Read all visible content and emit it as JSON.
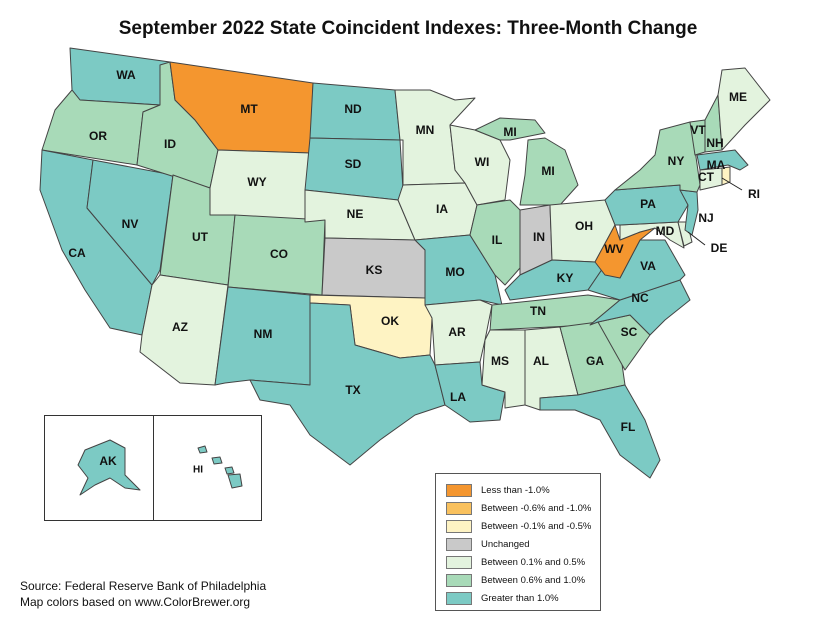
{
  "title": "September 2022 State Coincident Indexes: Three-Month Change",
  "colors": {
    "less_than_neg1": "#f4962f",
    "neg06_to_neg10": "#f9c15e",
    "neg01_to_neg05": "#fef3c3",
    "unchanged": "#c9c9c9",
    "pos01_to_05": "#e3f3de",
    "pos06_to_10": "#a8dab8",
    "greater_than_1": "#7ccac4"
  },
  "legend": [
    {
      "label": "Less than -1.0%",
      "color": "#f4962f"
    },
    {
      "label": "Between -0.6% and -1.0%",
      "color": "#f9c15e"
    },
    {
      "label": "Between -0.1% and -0.5%",
      "color": "#fef3c3"
    },
    {
      "label": "Unchanged",
      "color": "#c9c9c9"
    },
    {
      "label": "Between 0.1% and 0.5%",
      "color": "#e3f3de"
    },
    {
      "label": "Between 0.6% and 1.0%",
      "color": "#a8dab8"
    },
    {
      "label": "Greater than 1.0%",
      "color": "#7ccac4"
    }
  ],
  "states": {
    "WA": "greater_than_1",
    "OR": "pos06_to_10",
    "CA": "greater_than_1",
    "NV": "greater_than_1",
    "ID": "pos06_to_10",
    "MT": "less_than_neg1",
    "WY": "pos01_to_05",
    "UT": "pos06_to_10",
    "AZ": "pos01_to_05",
    "CO": "pos06_to_10",
    "NM": "greater_than_1",
    "ND": "greater_than_1",
    "SD": "greater_than_1",
    "NE": "pos01_to_05",
    "KS": "unchanged",
    "OK": "neg01_to_neg05",
    "TX": "greater_than_1",
    "MN": "pos01_to_05",
    "IA": "pos01_to_05",
    "MO": "greater_than_1",
    "AR": "pos01_to_05",
    "LA": "greater_than_1",
    "WI": "pos01_to_05",
    "IL": "pos06_to_10",
    "MI": "pos06_to_10",
    "IN": "unchanged",
    "OH": "pos01_to_05",
    "KY": "greater_than_1",
    "TN": "pos06_to_10",
    "MS": "pos01_to_05",
    "AL": "pos01_to_05",
    "GA": "pos06_to_10",
    "FL": "greater_than_1",
    "SC": "pos06_to_10",
    "NC": "greater_than_1",
    "VA": "greater_than_1",
    "WV": "less_than_neg1",
    "MD": "pos01_to_05",
    "DE": "pos01_to_05",
    "PA": "greater_than_1",
    "NJ": "greater_than_1",
    "NY": "pos06_to_10",
    "CT": "pos01_to_05",
    "RI": "neg01_to_neg05",
    "MA": "greater_than_1",
    "VT": "pos06_to_10",
    "NH": "pos06_to_10",
    "ME": "pos01_to_05",
    "AK": "greater_than_1",
    "HI": "greater_than_1"
  },
  "state_labels": {
    "WA": "WA",
    "OR": "OR",
    "CA": "CA",
    "NV": "NV",
    "ID": "ID",
    "MT": "MT",
    "WY": "WY",
    "UT": "UT",
    "AZ": "AZ",
    "CO": "CO",
    "NM": "NM",
    "ND": "ND",
    "SD": "SD",
    "NE": "NE",
    "KS": "KS",
    "OK": "OK",
    "TX": "TX",
    "MN": "MN",
    "IA": "IA",
    "MO": "MO",
    "AR": "AR",
    "LA": "LA",
    "WI": "WI",
    "IL": "IL",
    "MI_UP": "MI",
    "MI": "MI",
    "IN": "IN",
    "OH": "OH",
    "KY": "KY",
    "TN": "TN",
    "MS": "MS",
    "AL": "AL",
    "GA": "GA",
    "FL": "FL",
    "SC": "SC",
    "NC": "NC",
    "VA": "VA",
    "WV": "WV",
    "MD": "MD",
    "DE": "DE",
    "PA": "PA",
    "NJ": "NJ",
    "NY": "NY",
    "CT": "CT",
    "RI": "RI",
    "MA": "MA",
    "VT": "VT",
    "NH": "NH",
    "ME": "ME",
    "AK": "AK",
    "HI": "HI"
  },
  "source": {
    "line1": "Source: Federal Reserve Bank of Philadelphia",
    "line2": "Map colors based on www.ColorBrewer.org"
  }
}
